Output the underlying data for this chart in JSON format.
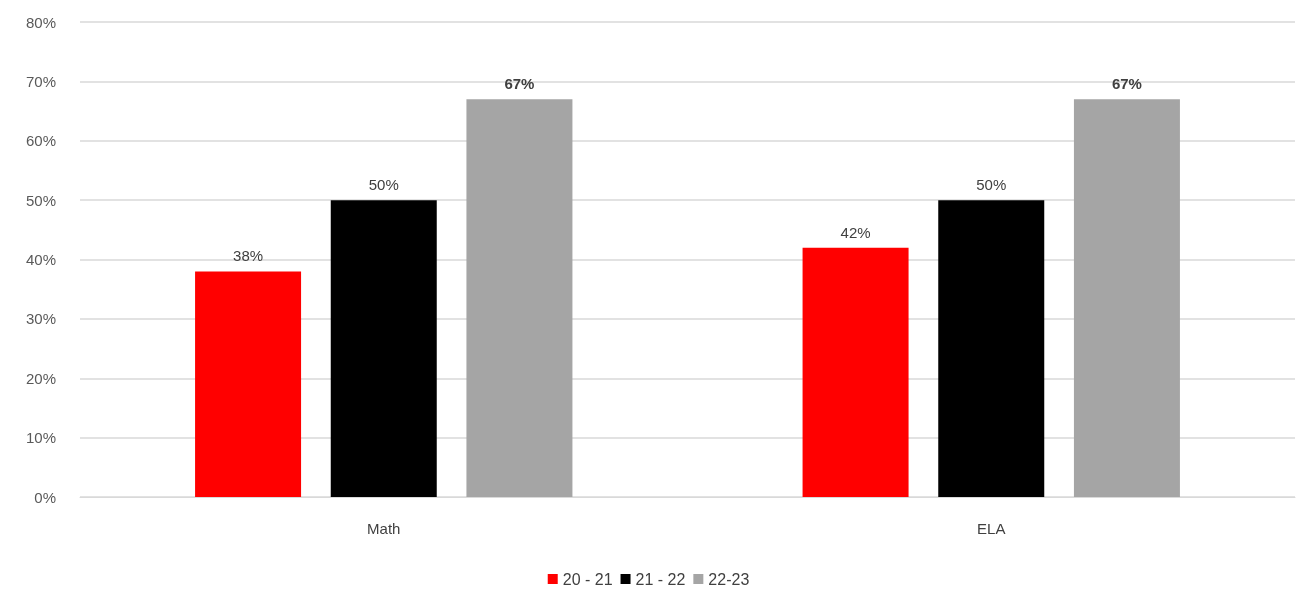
{
  "chart_data": {
    "type": "bar",
    "categories": [
      "Math",
      "ELA"
    ],
    "series": [
      {
        "name": "20 - 21",
        "color": "#ff0000",
        "values": [
          38,
          42
        ],
        "value_labels": [
          "38%",
          "42%"
        ]
      },
      {
        "name": "21 - 22",
        "color": "#000000",
        "values": [
          50,
          50
        ],
        "value_labels": [
          "50%",
          "50%"
        ]
      },
      {
        "name": "22-23",
        "color": "#a5a5a5",
        "values": [
          67,
          67
        ],
        "value_labels": [
          "67%",
          "67%"
        ]
      }
    ],
    "ylim": [
      0,
      80
    ],
    "yticks": [
      {
        "value": 0,
        "label": "0%"
      },
      {
        "value": 10,
        "label": "10%"
      },
      {
        "value": 20,
        "label": "20%"
      },
      {
        "value": 30,
        "label": "30%"
      },
      {
        "value": 40,
        "label": "40%"
      },
      {
        "value": 50,
        "label": "50%"
      },
      {
        "value": 60,
        "label": "60%"
      },
      {
        "value": 70,
        "label": "70%"
      },
      {
        "value": 80,
        "label": "80%"
      }
    ],
    "grid": "y",
    "legend": "bottom"
  }
}
